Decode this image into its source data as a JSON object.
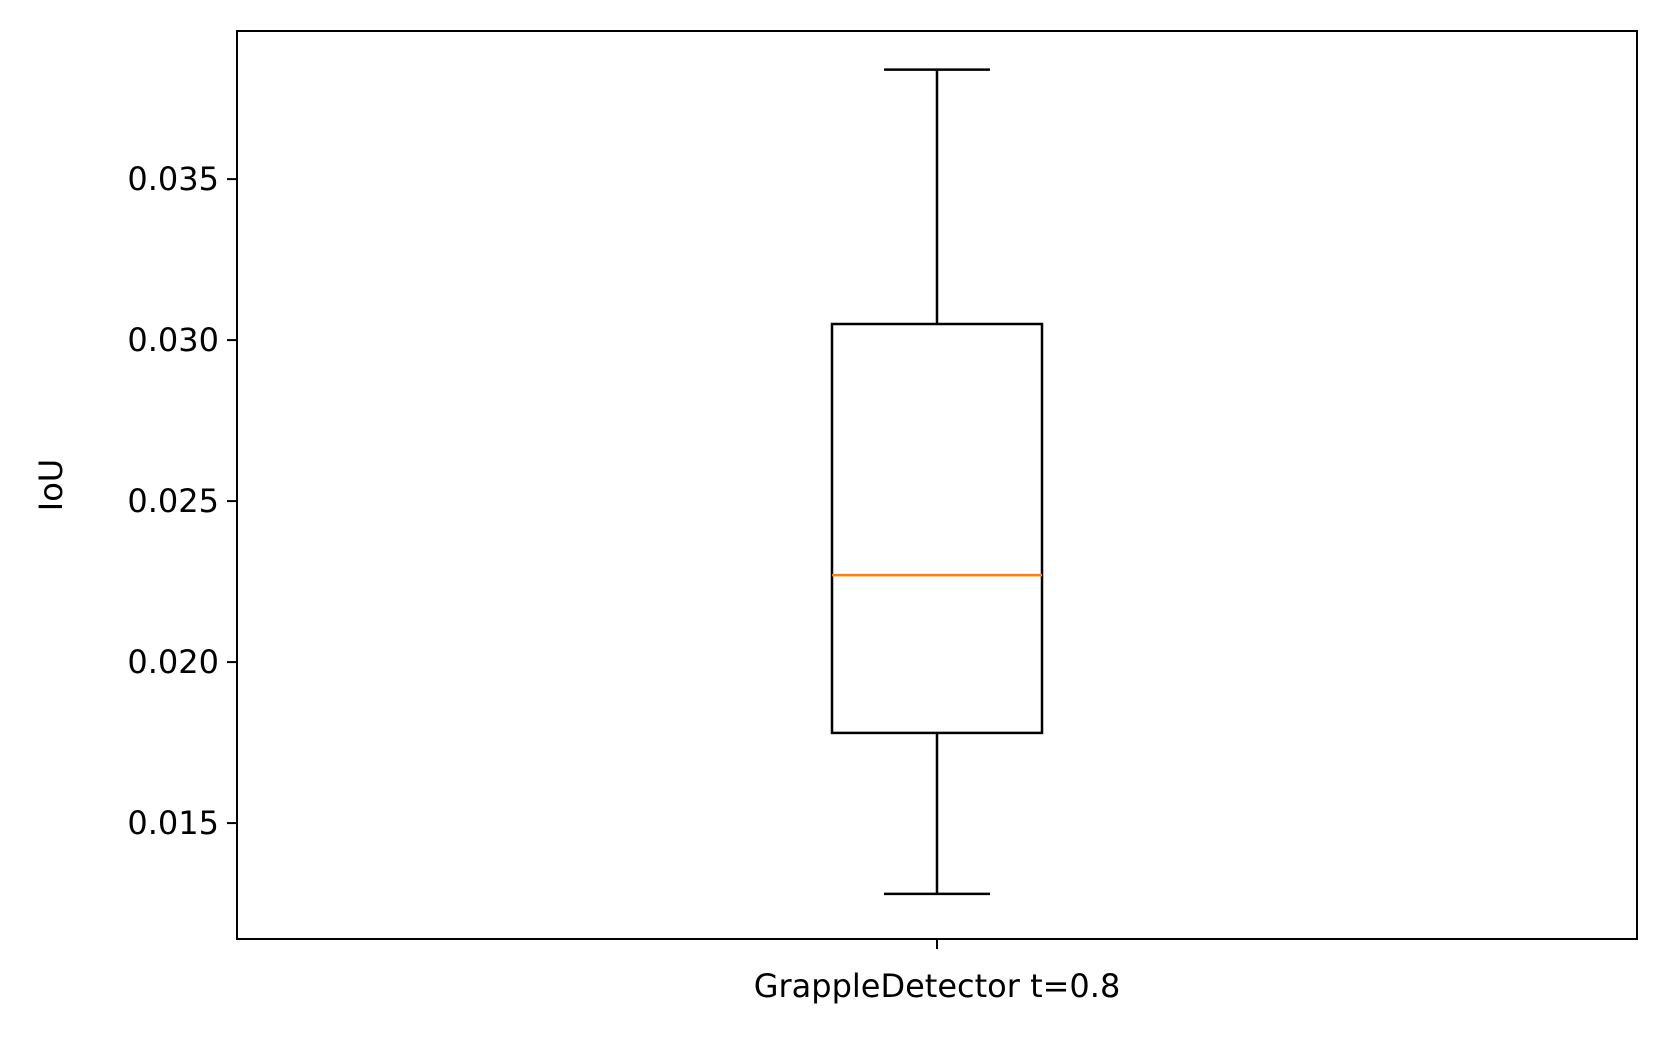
{
  "chart_data": {
    "type": "box",
    "title": "",
    "xlabel": "",
    "ylabel": "IoU",
    "categories": [
      "GrappleDetector t=0.8"
    ],
    "boxes": [
      {
        "category": "GrappleDetector t=0.8",
        "whisker_low": 0.0128,
        "q1": 0.0178,
        "median": 0.0227,
        "q3": 0.0305,
        "whisker_high": 0.0384
      }
    ],
    "yticks": [
      0.015,
      0.02,
      0.025,
      0.03,
      0.035
    ],
    "ytick_labels": [
      "0.015",
      "0.020",
      "0.025",
      "0.030",
      "0.035"
    ],
    "ylim": [
      0.0114,
      0.0396
    ],
    "grid": false,
    "colors": {
      "box": "#000000",
      "median": "#ff7f0e",
      "frame": "#000000"
    }
  }
}
